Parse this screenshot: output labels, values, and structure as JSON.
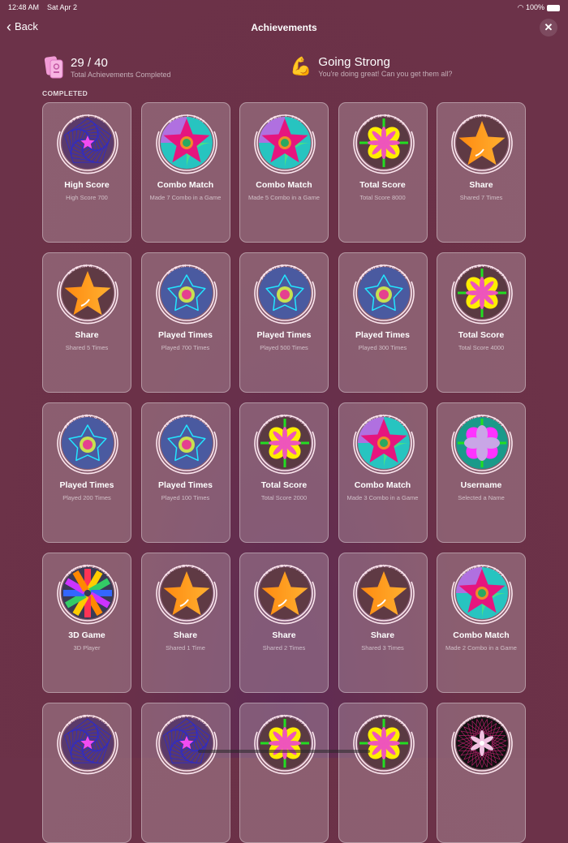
{
  "status": {
    "time": "12:48 AM",
    "date": "Sat Apr 2",
    "battery": "100%"
  },
  "nav": {
    "back": "Back",
    "title": "Achievements",
    "close": "✕"
  },
  "summary": {
    "count": "29 / 40",
    "count_label": "Total Achievements Completed",
    "status_title": "Going Strong",
    "status_label": "You're doing great! Can you get them all?",
    "status_emoji": "💪"
  },
  "section": "COMPLETED",
  "achievements": [
    {
      "date": "APRIL 1, 2022",
      "title": "High Score",
      "subtitle": "High Score 700",
      "icon": "spiral"
    },
    {
      "date": "APRIL 1, 2022",
      "title": "Combo Match",
      "subtitle": "Made 7 Combo in a Game",
      "icon": "flower"
    },
    {
      "date": "APRIL 1, 2022",
      "title": "Combo Match",
      "subtitle": "Made 5 Combo in a Game",
      "icon": "flower"
    },
    {
      "date": "MARCH 28, 2022",
      "title": "Total Score",
      "subtitle": "Total Score 8000",
      "icon": "clover"
    },
    {
      "date": "MARCH 6, 2022",
      "title": "Share",
      "subtitle": "Shared 7 Times",
      "icon": "star"
    },
    {
      "date": "MARCH 6, 2022",
      "title": "Share",
      "subtitle": "Shared 5 Times",
      "icon": "star"
    },
    {
      "date": "MARCH 1, 2022",
      "title": "Played Times",
      "subtitle": "Played 700 Times",
      "icon": "ring"
    },
    {
      "date": "FEBRUARY 18, 2022",
      "title": "Played Times",
      "subtitle": "Played 500 Times",
      "icon": "ring"
    },
    {
      "date": "FEBRUARY 10, 2022",
      "title": "Played Times",
      "subtitle": "Played 300 Times",
      "icon": "ring"
    },
    {
      "date": "FEBRUARY 10, 2022",
      "title": "Total Score",
      "subtitle": "Total Score 4000",
      "icon": "clover"
    },
    {
      "date": "FEBRUARY 4, 2022",
      "title": "Played Times",
      "subtitle": "Played 200 Times",
      "icon": "ring"
    },
    {
      "date": "JANUARY 28, 2022",
      "title": "Played Times",
      "subtitle": "Played 100 Times",
      "icon": "ring"
    },
    {
      "date": "JANUARY 2, 2022",
      "title": "Total Score",
      "subtitle": "Total Score 2000",
      "icon": "clover"
    },
    {
      "date": "JANUARY 2, 2022",
      "title": "Combo Match",
      "subtitle": "Made 3 Combo in a Game",
      "icon": "flower"
    },
    {
      "date": "JANUARY 2, 2022",
      "title": "Username",
      "subtitle": "Selected a Name",
      "icon": "username"
    },
    {
      "date": "JANUARY 2, 2022",
      "title": "3D Game",
      "subtitle": "3D Player",
      "icon": "3d"
    },
    {
      "date": "JANUARY 2, 2022",
      "title": "Share",
      "subtitle": "Shared 1 Time",
      "icon": "star"
    },
    {
      "date": "JANUARY 2, 2022",
      "title": "Share",
      "subtitle": "Shared 2 Times",
      "icon": "star"
    },
    {
      "date": "JANUARY 2, 2022",
      "title": "Share",
      "subtitle": "Shared 3 Times",
      "icon": "star"
    },
    {
      "date": "JANUARY 2, 2022",
      "title": "Combo Match",
      "subtitle": "Made 2 Combo in a Game",
      "icon": "flower"
    },
    {
      "date": "JANUARY 2, 2022",
      "icon": "spiral"
    },
    {
      "date": "JANUARY 2, 2022",
      "icon": "spiral"
    },
    {
      "date": "JANUARY 2, 2022",
      "icon": "clover"
    },
    {
      "date": "JANUARY 2, 2022",
      "icon": "clover"
    },
    {
      "date": "JANUARY 2, 2022",
      "icon": "dark-flower"
    }
  ]
}
